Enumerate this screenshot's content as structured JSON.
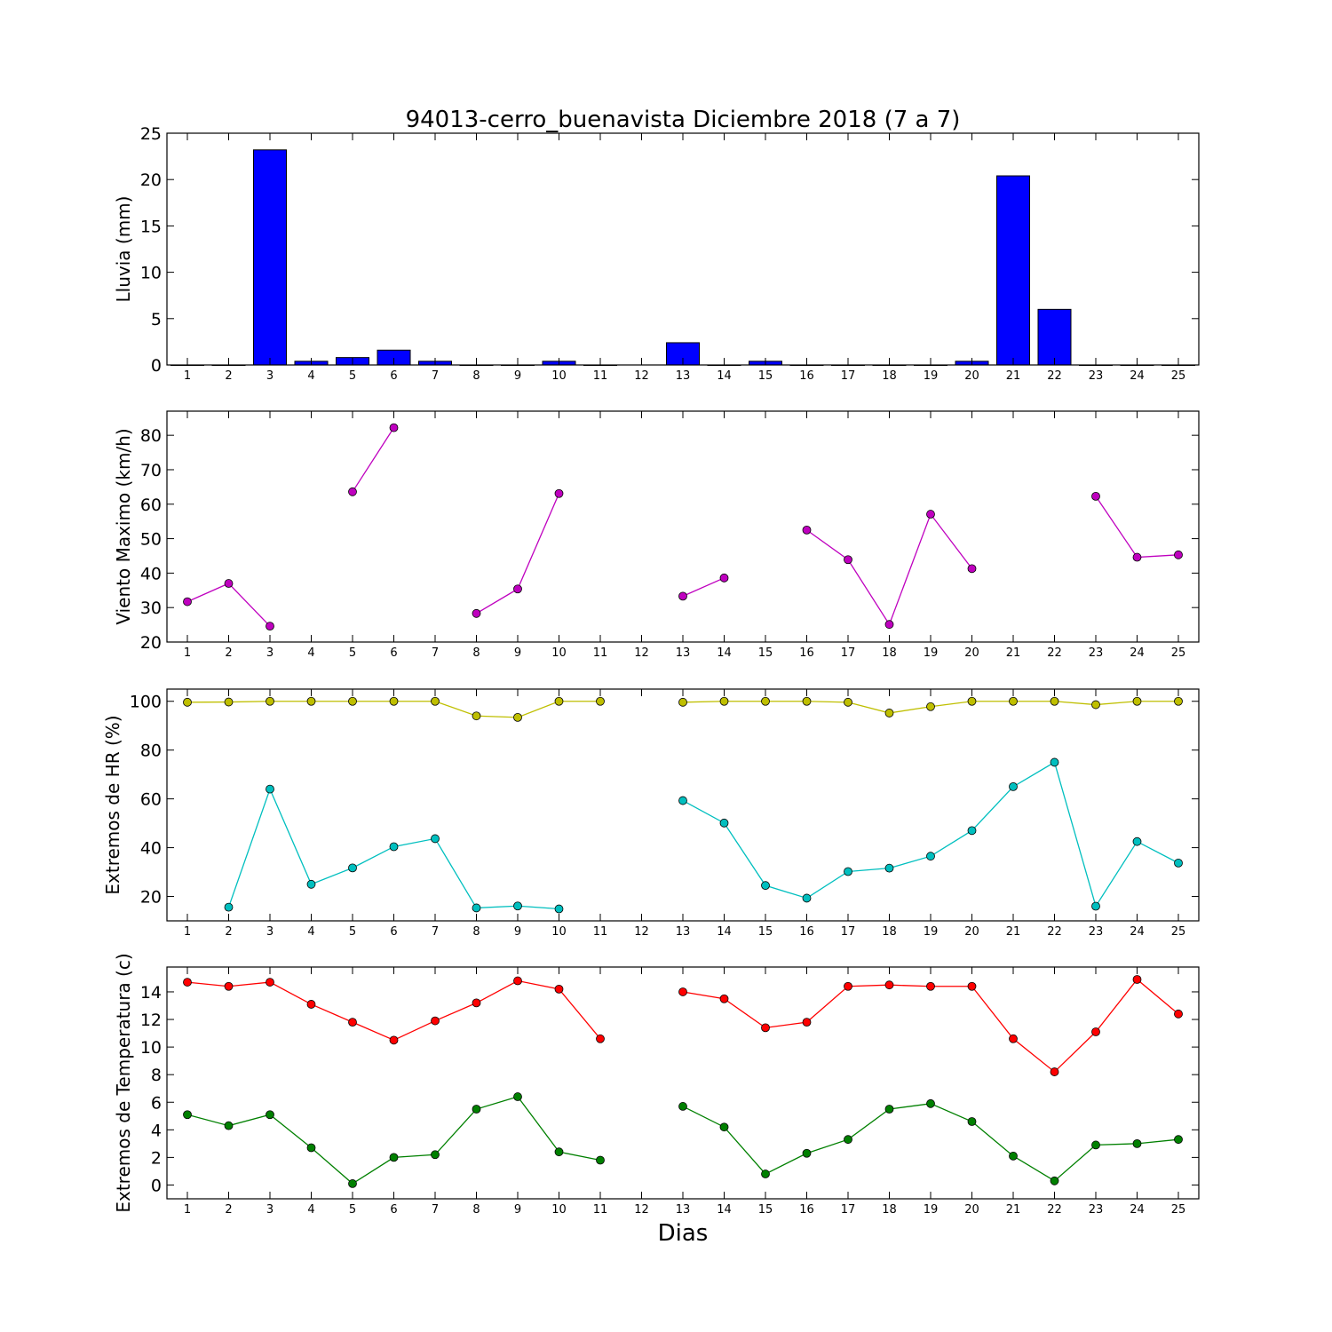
{
  "chart_data": {
    "title": "94013-cerro_buenavista Diciembre 2018  (7 a 7)",
    "xlabel": "Dias",
    "days": [
      1,
      2,
      3,
      4,
      5,
      6,
      7,
      8,
      9,
      10,
      11,
      12,
      13,
      14,
      15,
      16,
      17,
      18,
      19,
      20,
      21,
      22,
      23,
      24,
      25
    ],
    "panels": [
      {
        "id": "lluvia",
        "type": "bar",
        "ylabel": "Lluvia (mm)",
        "ylim": [
          0,
          25
        ],
        "yticks": [
          0,
          5,
          10,
          15,
          20,
          25
        ],
        "series": [
          {
            "color": "#0000ff",
            "values": [
              0,
              0,
              23.2,
              0.4,
              0.8,
              1.6,
              0.4,
              0,
              0,
              0.4,
              0,
              null,
              2.4,
              0,
              0.4,
              0,
              0,
              0,
              0,
              0.4,
              20.4,
              6.0,
              0,
              0,
              0
            ]
          }
        ]
      },
      {
        "id": "viento",
        "type": "line",
        "ylabel": "Viento Maximo (km/h)",
        "ylim": [
          20,
          87
        ],
        "yticks": [
          20,
          30,
          40,
          50,
          60,
          70,
          80
        ],
        "series": [
          {
            "color": "#bf00bf",
            "values": [
              31.7,
              37.0,
              24.6,
              null,
              63.6,
              82.2,
              null,
              28.3,
              35.4,
              63.1,
              null,
              null,
              33.3,
              38.6,
              null,
              52.5,
              43.9,
              25.1,
              57.1,
              41.3,
              null,
              null,
              62.3,
              44.6,
              45.3
            ]
          }
        ]
      },
      {
        "id": "hr",
        "type": "line",
        "ylabel": "Extremos de HR (%)",
        "ylim": [
          10,
          105
        ],
        "yticks": [
          20,
          40,
          60,
          80,
          100
        ],
        "series": [
          {
            "color": "#bfbf00",
            "values": [
              99.6,
              99.7,
              100,
              100,
              100,
              100,
              100,
              94,
              93.4,
              100,
              100,
              null,
              99.6,
              100,
              100,
              100,
              99.6,
              95.2,
              97.8,
              100,
              100,
              100,
              98.6,
              100,
              100
            ]
          },
          {
            "color": "#00bfbf",
            "values": [
              null,
              15.6,
              64,
              25,
              31.7,
              40.4,
              43.7,
              15.3,
              16.1,
              14.9,
              null,
              null,
              59.3,
              50.1,
              24.5,
              19.3,
              30.2,
              31.6,
              36.5,
              47,
              65,
              75,
              16,
              42.5,
              33.7
            ]
          }
        ]
      },
      {
        "id": "temp",
        "type": "line",
        "ylabel": "Extremos de Temperatura (c)",
        "ylim": [
          -1,
          15.8
        ],
        "yticks": [
          0,
          2,
          4,
          6,
          8,
          10,
          12,
          14
        ],
        "series": [
          {
            "color": "#ff0000",
            "values": [
              14.7,
              14.4,
              14.7,
              13.1,
              11.8,
              10.5,
              11.9,
              13.2,
              14.8,
              14.2,
              10.6,
              null,
              14.0,
              13.5,
              11.4,
              11.8,
              14.4,
              14.5,
              14.4,
              14.4,
              10.6,
              8.2,
              11.1,
              14.9,
              12.4
            ]
          },
          {
            "color": "#008000",
            "values": [
              5.1,
              4.3,
              5.1,
              2.7,
              0.1,
              2.0,
              2.2,
              5.5,
              6.4,
              2.4,
              1.8,
              null,
              5.7,
              4.2,
              0.8,
              2.3,
              3.3,
              5.5,
              5.9,
              4.6,
              2.1,
              0.3,
              2.9,
              3.0,
              3.3
            ]
          }
        ]
      }
    ]
  }
}
